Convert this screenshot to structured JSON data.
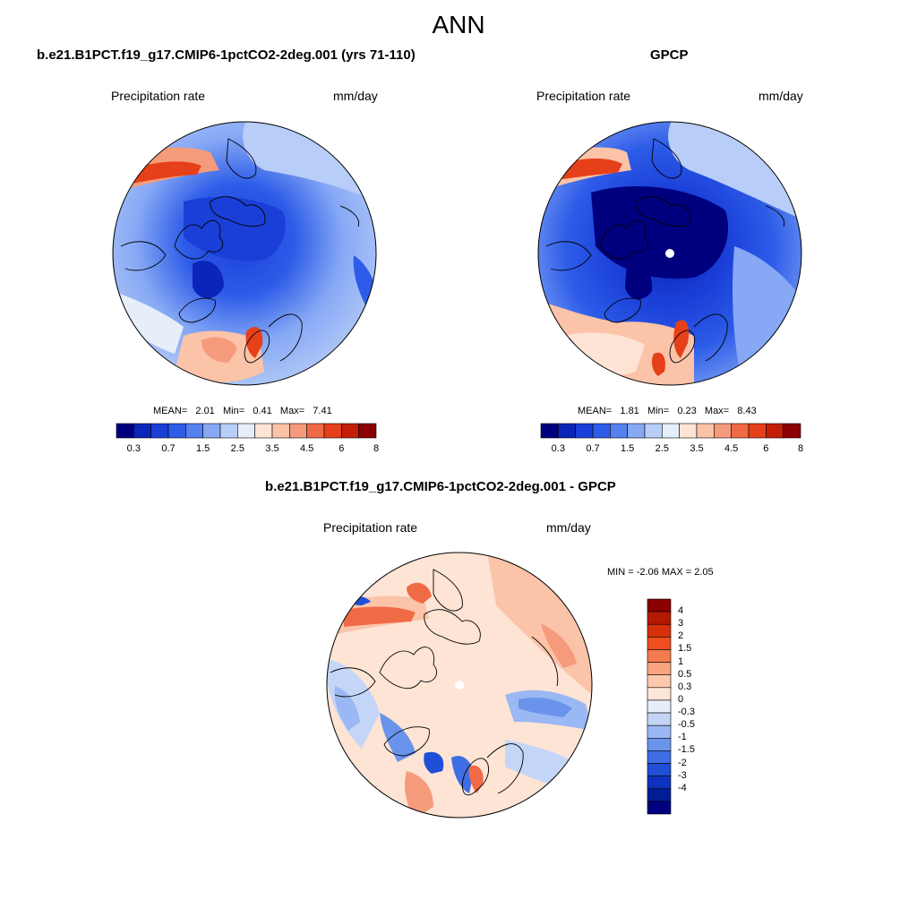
{
  "figure": {
    "title": "ANN"
  },
  "panels": {
    "model": {
      "title": "b.e21.B1PCT.f19_g17.CMIP6-1pctCO2-2deg.001 (yrs 71-110)",
      "left_label": "Precipitation rate",
      "right_label": "mm/day",
      "stats": {
        "mean_label": "MEAN=",
        "mean": "2.01",
        "min_label": "Min=",
        "min": "0.41",
        "max_label": "Max=",
        "max": "7.41"
      }
    },
    "obs": {
      "title": "GPCP",
      "left_label": "Precipitation rate",
      "right_label": "mm/day",
      "stats": {
        "mean_label": "MEAN=",
        "mean": "1.81",
        "min_label": "Min=",
        "min": "0.23",
        "max_label": "Max=",
        "max": "8.43"
      }
    },
    "diff": {
      "title": "b.e21.B1PCT.f19_g17.CMIP6-1pctCO2-2deg.001 - GPCP",
      "left_label": "Precipitation rate",
      "right_label": "mm/day",
      "minmax_text": "MIN =  -2.06 MAX =   2.05"
    }
  },
  "colorbars": {
    "precip": {
      "colors": [
        "#00007f",
        "#0a25b8",
        "#1a3fd8",
        "#2d5ce8",
        "#5580f0",
        "#86a8f5",
        "#b8cdf7",
        "#e6eefa",
        "#fde4d5",
        "#fbc3a8",
        "#f59b7c",
        "#f06a45",
        "#e6401a",
        "#c21e08",
        "#8b0000"
      ],
      "labels": [
        "0.3",
        "0.7",
        "1.5",
        "2.5",
        "3.5",
        "4.5",
        "6",
        "8"
      ]
    },
    "diff": {
      "colors_top_to_bottom": [
        "#8b0000",
        "#b31a00",
        "#d6300a",
        "#f04e20",
        "#f57a4e",
        "#f9a47f",
        "#fcc9ae",
        "#fde6d8",
        "#e6eefa",
        "#c4d6f7",
        "#9ab8f3",
        "#6a94ec",
        "#3f6ee4",
        "#1f4fd6",
        "#0e32bd",
        "#001d96",
        "#00007f"
      ],
      "labels": [
        "4",
        "3",
        "2",
        "1.5",
        "1",
        "0.5",
        "0.3",
        "0",
        "-0.3",
        "-0.5",
        "-1",
        "-1.5",
        "-2",
        "-3",
        "-4"
      ]
    }
  },
  "chart_data": [
    {
      "type": "heatmap",
      "title": "b.e21.B1PCT.f19_g17.CMIP6-1pctCO2-2deg.001 (yrs 71-110)",
      "subtitle_left": "Precipitation rate",
      "units": "mm/day",
      "projection": "polar-stereographic north",
      "mean": 2.01,
      "min": 0.41,
      "max": 7.41,
      "contour_levels": [
        0.3,
        0.5,
        0.7,
        1,
        1.5,
        2,
        2.5,
        3,
        3.5,
        4,
        4.5,
        5,
        6,
        7,
        8
      ]
    },
    {
      "type": "heatmap",
      "title": "GPCP",
      "subtitle_left": "Precipitation rate",
      "units": "mm/day",
      "projection": "polar-stereographic north",
      "mean": 1.81,
      "min": 0.23,
      "max": 8.43,
      "contour_levels": [
        0.3,
        0.5,
        0.7,
        1,
        1.5,
        2,
        2.5,
        3,
        3.5,
        4,
        4.5,
        5,
        6,
        7,
        8
      ]
    },
    {
      "type": "heatmap",
      "title": "b.e21.B1PCT.f19_g17.CMIP6-1pctCO2-2deg.001 - GPCP",
      "subtitle_left": "Precipitation rate",
      "units": "mm/day",
      "projection": "polar-stereographic north",
      "min": -2.06,
      "max": 2.05,
      "contour_levels": [
        -4,
        -3,
        -2,
        -1.5,
        -1,
        -0.5,
        -0.3,
        0,
        0.3,
        0.5,
        1,
        1.5,
        2,
        3,
        4
      ]
    }
  ]
}
